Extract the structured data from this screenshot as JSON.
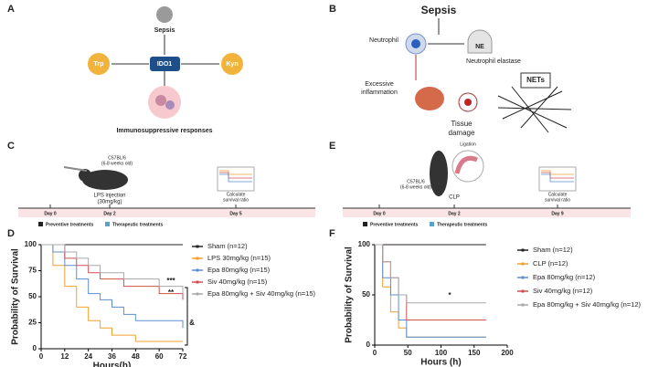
{
  "panel_letters": [
    "A",
    "B",
    "C",
    "D",
    "E",
    "F"
  ],
  "panel_a": {
    "top": "Sepsis",
    "left": "Trp",
    "center": "IDO1",
    "right": "Kyn",
    "bottom": "Immunosuppressive responses"
  },
  "panel_b": {
    "title": "Sepsis",
    "neutrophil": "Neutrophil",
    "ne": "NE",
    "ne_label": "Neutrophil elastase",
    "inflammation_1": "Excessive",
    "inflammation_2": "inflammation",
    "nets": "NETs",
    "damage_1": "Tissue",
    "damage_2": "damage"
  },
  "panel_c": {
    "strain": "C57BL/6",
    "age": "(6-8 weeks old)",
    "injection_1": "LPS injection",
    "injection_2": "(30mg/kg)",
    "calc_1": "Calculate",
    "calc_2": "survival ratio",
    "days": [
      "Day 0",
      "Day 2",
      "Day 5"
    ],
    "legend": [
      "Preventive treatments",
      "Therapeutic treatments"
    ]
  },
  "panel_e": {
    "strain": "C57BL/6",
    "age": "(6-8 weeks old)",
    "ligation": "Ligation",
    "clp": "CLP",
    "calc_1": "Calculate",
    "calc_2": "survival ratio",
    "days": [
      "Day 0",
      "Day 2",
      "Day 9"
    ],
    "legend": [
      "Preventive treatments",
      "Therapeutic treatments"
    ]
  },
  "chart_data": [
    {
      "type": "line",
      "x_label": "Hours(h)",
      "y_label": "Probability of Survival",
      "x": [
        0,
        6,
        12,
        18,
        24,
        30,
        36,
        42,
        48,
        60,
        72
      ],
      "xlim": [
        0,
        72
      ],
      "xticks": [
        0,
        12,
        24,
        36,
        48,
        60,
        72
      ],
      "ylim": [
        0,
        100
      ],
      "yticks": [
        0,
        25,
        50,
        75,
        100
      ],
      "series": [
        {
          "name": "Sham (n=12)",
          "color": "#222222",
          "values": [
            100,
            100,
            100,
            100,
            100,
            100,
            100,
            100,
            100,
            100,
            100
          ]
        },
        {
          "name": "LPS 30mg/kg (n=15)",
          "color": "#f0a030",
          "values": [
            100,
            80,
            60,
            40,
            27,
            20,
            13,
            13,
            7,
            7,
            7
          ]
        },
        {
          "name": "Epa 80mg/kg (n=15)",
          "color": "#5b8fd0",
          "values": [
            100,
            93,
            80,
            67,
            53,
            47,
            40,
            33,
            27,
            27,
            20
          ]
        },
        {
          "name": "Siv 40mg/kg (n=15)",
          "color": "#d05050",
          "values": [
            100,
            100,
            87,
            80,
            73,
            67,
            67,
            60,
            60,
            53,
            47
          ]
        },
        {
          "name": "Epa 80mg/kg + Siv 40mg/kg (n=15)",
          "color": "#a8a8a8",
          "values": [
            100,
            100,
            93,
            87,
            80,
            73,
            73,
            67,
            67,
            60,
            53
          ]
        }
      ],
      "annotations": [
        "***",
        "**",
        "&"
      ]
    },
    {
      "type": "line",
      "x_label": "Hours (h)",
      "y_label": "Probability of Survival",
      "x": [
        0,
        12,
        24,
        36,
        48,
        72,
        120,
        168
      ],
      "xlim": [
        0,
        200
      ],
      "xticks": [
        0,
        50,
        100,
        150,
        200
      ],
      "ylim": [
        0,
        100
      ],
      "yticks": [
        0,
        50,
        100
      ],
      "series": [
        {
          "name": "Sham (n=12)",
          "color": "#222222",
          "values": [
            100,
            100,
            100,
            100,
            100,
            100,
            100,
            100
          ]
        },
        {
          "name": "CLP (n=12)",
          "color": "#f0a030",
          "values": [
            100,
            58,
            33,
            17,
            8,
            8,
            8,
            8
          ]
        },
        {
          "name": "Epa 80mg/kg (n=12)",
          "color": "#5b8fd0",
          "values": [
            100,
            67,
            50,
            25,
            8,
            8,
            8,
            8
          ]
        },
        {
          "name": "Siv 40mg/kg (n=12)",
          "color": "#d05050",
          "values": [
            100,
            83,
            67,
            50,
            25,
            25,
            25,
            25
          ]
        },
        {
          "name": "Epa 80mg/kg + Siv 40mg/kg (n=12)",
          "color": "#a8a8a8",
          "values": [
            100,
            83,
            67,
            50,
            42,
            42,
            42,
            42
          ]
        }
      ],
      "annotations": [
        "*"
      ]
    }
  ]
}
